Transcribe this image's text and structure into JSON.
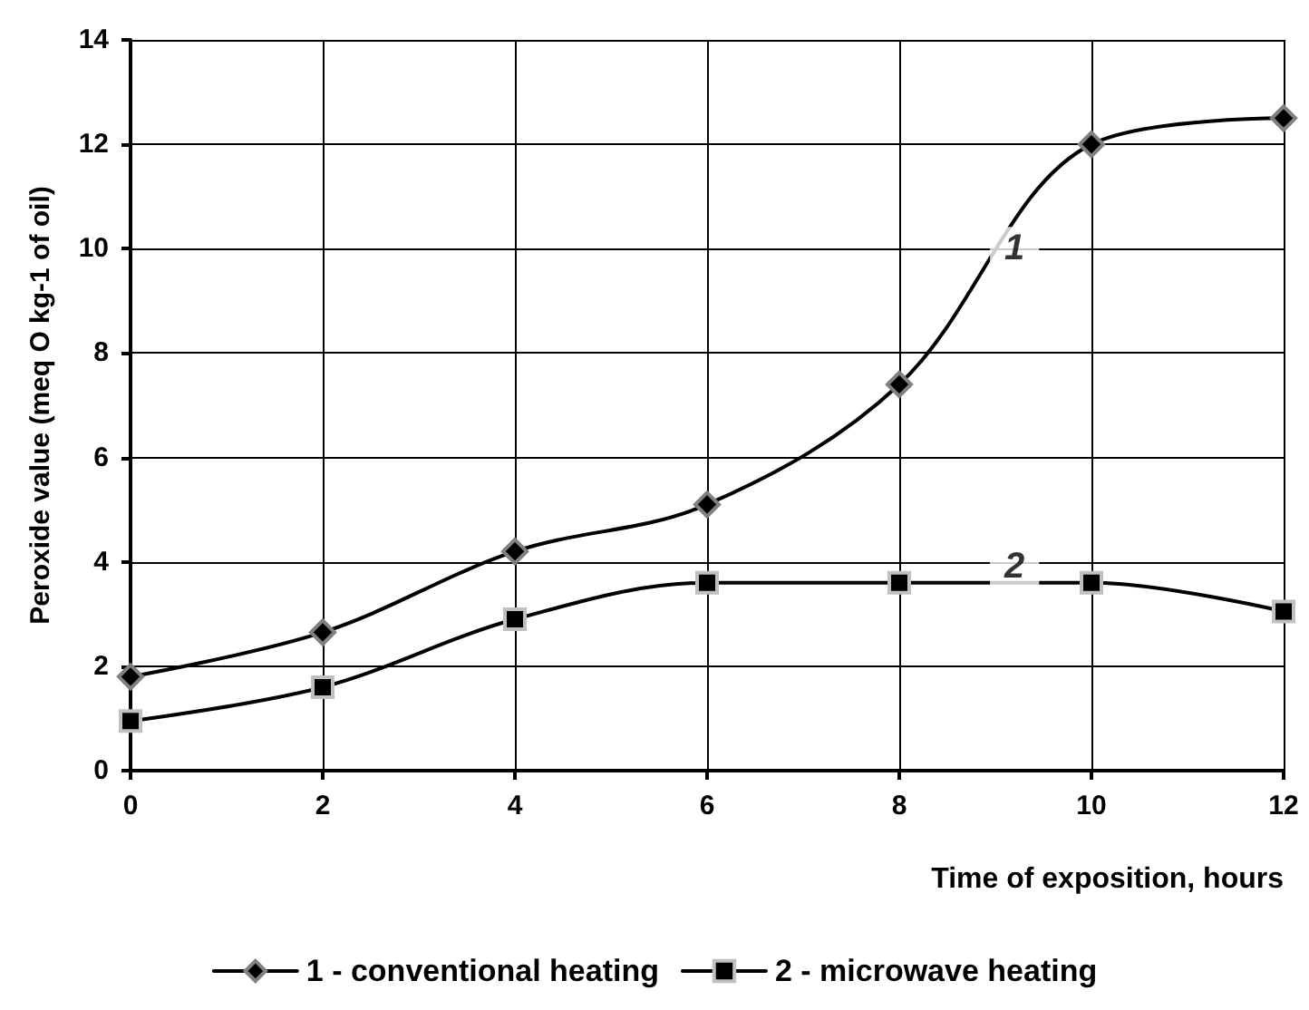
{
  "chart_data": {
    "type": "line",
    "xlabel": "Time of exposition, hours",
    "ylabel": "Peroxide value (meq O kg-1 of oil)",
    "x": [
      0,
      2,
      4,
      6,
      8,
      10,
      12
    ],
    "series": [
      {
        "name": "1 - conventional heating",
        "color": "#000000",
        "marker": "diamond",
        "values": [
          1.8,
          2.65,
          4.2,
          5.1,
          7.4,
          12.0,
          12.5
        ]
      },
      {
        "name": "2 - microwave heating",
        "color": "#000000",
        "marker": "square",
        "values": [
          0.95,
          1.6,
          2.9,
          3.6,
          3.6,
          3.6,
          3.05
        ]
      }
    ],
    "xlim": [
      0,
      12
    ],
    "xticks": [
      0,
      2,
      4,
      6,
      8,
      10,
      12
    ],
    "ylim": [
      0,
      14
    ],
    "yticks": [
      0,
      2,
      4,
      6,
      8,
      10,
      12,
      14
    ],
    "annotations": [
      {
        "text": "1",
        "x": 9.2,
        "y": 10
      },
      {
        "text": "2",
        "x": 9.2,
        "y": 3.9
      }
    ],
    "grid": true,
    "legend": "bottom",
    "line_style": "solid"
  }
}
